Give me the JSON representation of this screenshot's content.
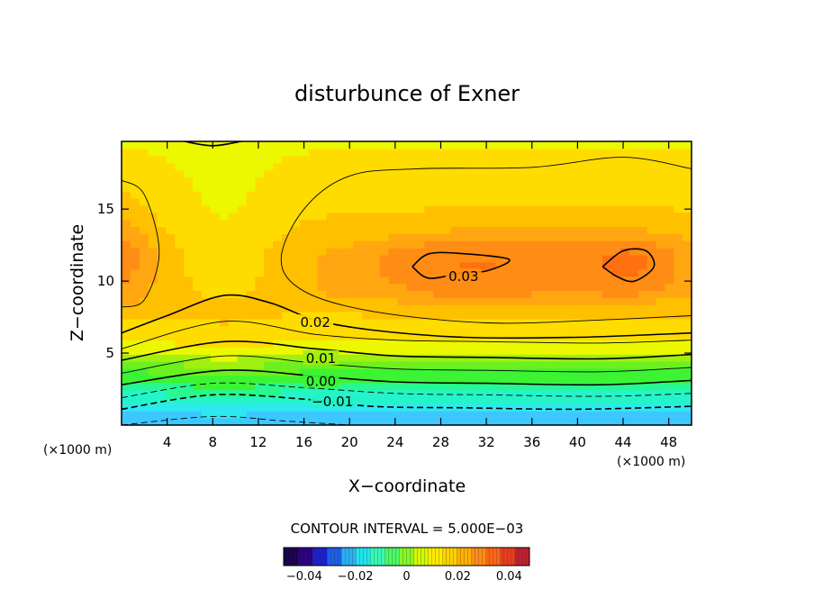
{
  "chart_data": {
    "type": "contour",
    "title": "disturbunce of Exner",
    "xlabel": "X−coordinate",
    "ylabel": "Z−coordinate",
    "x_unit": "(×1000 m)",
    "z_unit": "(×1000 m)",
    "xlim": [
      0,
      50
    ],
    "ylim": [
      0,
      19.7
    ],
    "x_ticks": [
      4,
      8,
      12,
      16,
      20,
      24,
      28,
      32,
      36,
      40,
      44,
      48
    ],
    "y_ticks": [
      5,
      10,
      15
    ],
    "x_tick_labels": [
      "4",
      "8",
      "12",
      "16",
      "20",
      "24",
      "28",
      "32",
      "36",
      "40",
      "44",
      "48"
    ],
    "y_tick_labels": [
      "5",
      "10",
      "15"
    ],
    "contour_interval_text": "CONTOUR INTERVAL = 5.000E−03",
    "contour_interval": 0.005,
    "contour_labels": [
      {
        "text": "0.03",
        "value": 0.03,
        "x": 30,
        "z": 10.2
      },
      {
        "text": "0.02",
        "value": 0.02,
        "x": 17,
        "z": 7.0
      },
      {
        "text": "0.01",
        "value": 0.01,
        "x": 17.5,
        "z": 4.5
      },
      {
        "text": "0.00",
        "value": 0.0,
        "x": 17.5,
        "z": 2.9
      },
      {
        "text": "−0.01",
        "value": -0.01,
        "x": 18.5,
        "z": 1.5
      }
    ],
    "contour_lines": [
      {
        "value": -0.015,
        "style": "dashed",
        "points": [
          [
            0,
            0.0
          ],
          [
            8,
            0.6
          ],
          [
            14,
            0.3
          ],
          [
            20,
            0.0
          ]
        ]
      },
      {
        "value": -0.01,
        "style": "dashed",
        "points": [
          [
            0,
            1.1
          ],
          [
            8,
            2.1
          ],
          [
            16,
            1.8
          ],
          [
            22,
            1.3
          ],
          [
            30,
            1.2
          ],
          [
            40,
            1.1
          ],
          [
            50,
            1.3
          ]
        ]
      },
      {
        "value": -0.005,
        "style": "dashed",
        "points": [
          [
            0,
            1.9
          ],
          [
            8,
            2.9
          ],
          [
            16,
            2.6
          ],
          [
            24,
            2.2
          ],
          [
            32,
            2.1
          ],
          [
            42,
            2.0
          ],
          [
            50,
            2.2
          ]
        ]
      },
      {
        "value": 0.0,
        "style": "solid",
        "points": [
          [
            0,
            2.8
          ],
          [
            9,
            3.8
          ],
          [
            17,
            3.4
          ],
          [
            24,
            3.0
          ],
          [
            32,
            2.9
          ],
          [
            42,
            2.8
          ],
          [
            50,
            3.1
          ]
        ]
      },
      {
        "value": 0.005,
        "style": "solid",
        "points": [
          [
            0,
            3.6
          ],
          [
            9,
            4.8
          ],
          [
            17,
            4.3
          ],
          [
            24,
            3.9
          ],
          [
            32,
            3.8
          ],
          [
            42,
            3.7
          ],
          [
            50,
            4.0
          ]
        ]
      },
      {
        "value": 0.01,
        "style": "solid",
        "points": [
          [
            0,
            4.5
          ],
          [
            9,
            5.8
          ],
          [
            17,
            5.3
          ],
          [
            24,
            4.8
          ],
          [
            32,
            4.7
          ],
          [
            42,
            4.6
          ],
          [
            50,
            4.9
          ]
        ]
      },
      {
        "value": 0.015,
        "style": "solid",
        "points": [
          [
            0,
            5.3
          ],
          [
            9,
            7.2
          ],
          [
            17,
            6.3
          ],
          [
            24,
            5.9
          ],
          [
            32,
            5.8
          ],
          [
            42,
            5.7
          ],
          [
            50,
            5.9
          ]
        ]
      },
      {
        "value": 0.02,
        "style": "solid",
        "points": [
          [
            0,
            6.4
          ],
          [
            4,
            7.6
          ],
          [
            9,
            9.0
          ],
          [
            13,
            8.5
          ],
          [
            17,
            7.3
          ],
          [
            22,
            6.6
          ],
          [
            30,
            6.1
          ],
          [
            40,
            6.1
          ],
          [
            50,
            6.4
          ]
        ]
      },
      {
        "value": 0.025,
        "style": "solid",
        "points": [
          [
            0,
            17.0
          ],
          [
            2,
            16.0
          ],
          [
            3.3,
            12.0
          ],
          [
            2,
            8.7
          ],
          [
            0,
            8.2
          ]
        ]
      },
      {
        "value": 0.025,
        "style": "solid",
        "points": [
          [
            50,
            17.8
          ],
          [
            44,
            18.6
          ],
          [
            36,
            17.9
          ],
          [
            26,
            17.8
          ],
          [
            20,
            17.3
          ],
          [
            16,
            15.0
          ],
          [
            14,
            11.5
          ],
          [
            16,
            9.3
          ],
          [
            22,
            7.9
          ],
          [
            32,
            7.1
          ],
          [
            42,
            7.3
          ],
          [
            50,
            7.6
          ]
        ]
      },
      {
        "value": 0.03,
        "style": "solid",
        "points": [
          [
            25.5,
            11.0
          ],
          [
            27,
            11.9
          ],
          [
            30,
            11.9
          ],
          [
            34,
            11.5
          ],
          [
            32,
            10.7
          ],
          [
            30,
            10.6
          ],
          [
            27,
            10.2
          ],
          [
            25.5,
            11.0
          ]
        ]
      },
      {
        "value": 0.03,
        "style": "solid",
        "points": [
          [
            42.2,
            11.0
          ],
          [
            44,
            12.1
          ],
          [
            46,
            12.1
          ],
          [
            46.7,
            11.0
          ],
          [
            45,
            10.0
          ],
          [
            43.5,
            10.3
          ],
          [
            42.2,
            11.0
          ]
        ]
      },
      {
        "value": 0.02,
        "style": "solid",
        "points": [
          [
            5.5,
            19.7
          ],
          [
            8,
            19.4
          ],
          [
            10.5,
            19.7
          ]
        ]
      }
    ],
    "colorbar": {
      "min": -0.048,
      "max": 0.048,
      "tick_values": [
        -0.04,
        -0.02,
        0,
        0.02,
        0.04
      ],
      "tick_labels": [
        "−0.04",
        "−0.02",
        "0",
        "0.02",
        "0.04"
      ],
      "colors": [
        "#1a004c",
        "#2a0080",
        "#1c1ed0",
        "#1a5ee8",
        "#2ab0f2",
        "#20e4ee",
        "#38f8b8",
        "#4cf864",
        "#86f826",
        "#d4f800",
        "#ffec00",
        "#ffd200",
        "#ffb000",
        "#ff8c14",
        "#ff6414",
        "#e83c20",
        "#c02030"
      ]
    },
    "field_color_stops": [
      {
        "value": -0.02,
        "color": "#3cc8ff"
      },
      {
        "value": -0.015,
        "color": "#2ee8f0"
      },
      {
        "value": -0.01,
        "color": "#24f4c8"
      },
      {
        "value": -0.005,
        "color": "#28f890"
      },
      {
        "value": 0.0,
        "color": "#3cf434"
      },
      {
        "value": 0.005,
        "color": "#6cf020"
      },
      {
        "value": 0.01,
        "color": "#a0f010"
      },
      {
        "value": 0.015,
        "color": "#ecf800"
      },
      {
        "value": 0.02,
        "color": "#ffdc00"
      },
      {
        "value": 0.025,
        "color": "#ffc000"
      },
      {
        "value": 0.028,
        "color": "#ffa610"
      },
      {
        "value": 0.03,
        "color": "#ff8c14"
      },
      {
        "value": 0.033,
        "color": "#ff7010"
      }
    ]
  }
}
